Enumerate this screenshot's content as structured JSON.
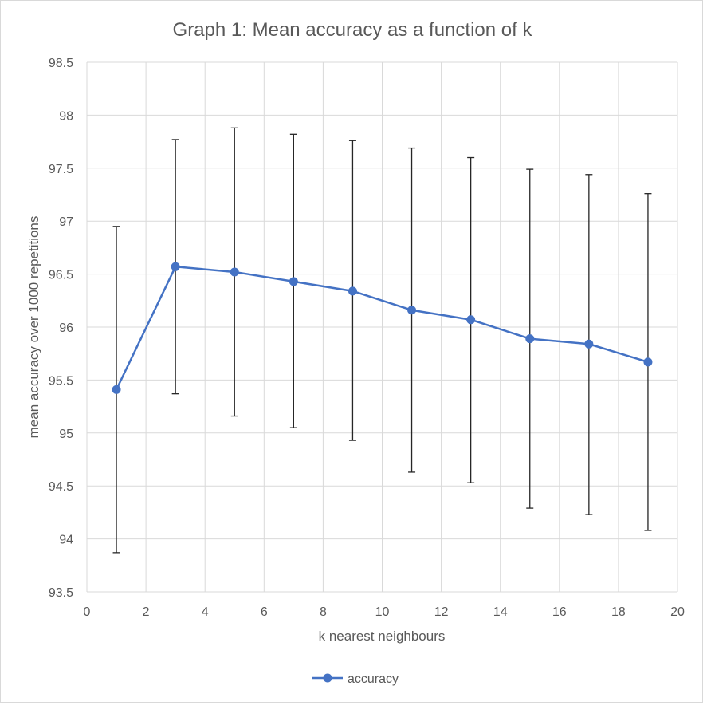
{
  "chart_data": {
    "type": "line",
    "title": "Graph 1: Mean accuracy as a function of k",
    "xlabel": "k nearest neighbours",
    "ylabel": "mean accuracy over 1000 repetitions",
    "xlim": [
      0,
      20
    ],
    "ylim": [
      93.5,
      98.5
    ],
    "x_ticks": [
      "0",
      "2",
      "4",
      "6",
      "8",
      "10",
      "12",
      "14",
      "16",
      "18",
      "20"
    ],
    "y_ticks": [
      "93.5",
      "94",
      "94.5",
      "95",
      "95.5",
      "96",
      "96.5",
      "97",
      "97.5",
      "98",
      "98.5"
    ],
    "grid": true,
    "legend_position": "bottom",
    "series": [
      {
        "name": "accuracy",
        "color": "#4472c4",
        "x": [
          1,
          3,
          5,
          7,
          9,
          11,
          13,
          15,
          17,
          19
        ],
        "values": [
          95.41,
          96.57,
          96.52,
          96.43,
          96.34,
          96.16,
          96.07,
          95.89,
          95.84,
          95.67
        ],
        "error_low": [
          93.87,
          95.37,
          95.16,
          95.05,
          94.93,
          94.63,
          94.53,
          94.29,
          94.23,
          94.08
        ],
        "error_high": [
          96.95,
          97.77,
          97.88,
          97.82,
          97.76,
          97.69,
          97.6,
          97.49,
          97.44,
          97.26
        ]
      }
    ]
  }
}
